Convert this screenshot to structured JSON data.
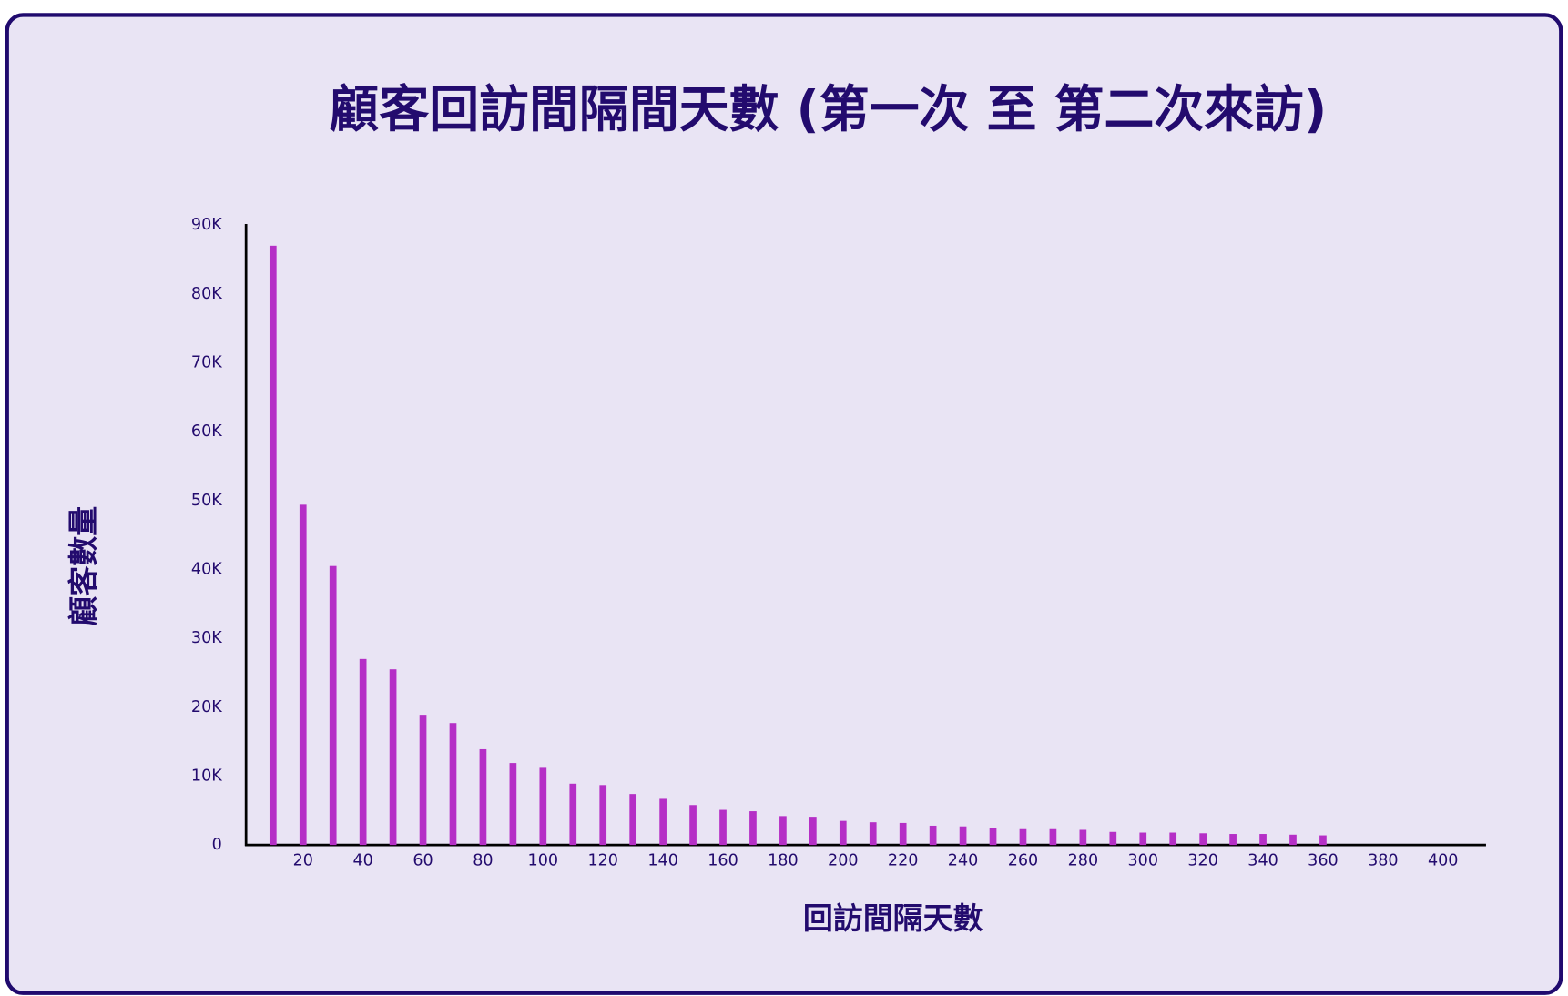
{
  "chart_data": {
    "type": "bar",
    "title": "顧客回訪間隔間天數 (第一次 至 第二次來訪)",
    "x_label": "回訪間隔天數",
    "y_label": "顧客數量",
    "color": "#b52fc6",
    "x": [
      10,
      20,
      30,
      40,
      50,
      60,
      70,
      80,
      90,
      100,
      110,
      120,
      130,
      140,
      150,
      160,
      170,
      180,
      190,
      200,
      210,
      220,
      230,
      240,
      250,
      260,
      270,
      280,
      290,
      300,
      310,
      320,
      330,
      340,
      350,
      360
    ],
    "values": [
      87000,
      49400,
      40500,
      27000,
      25500,
      18900,
      17700,
      13900,
      11900,
      11200,
      8900,
      8700,
      7400,
      6700,
      5800,
      5100,
      4900,
      4200,
      4100,
      3500,
      3300,
      3200,
      2800,
      2700,
      2500,
      2300,
      2300,
      2200,
      1900,
      1800,
      1800,
      1700,
      1600,
      1600,
      1500,
      1400
    ],
    "xlim": [
      0,
      414
    ],
    "xticks": [
      20,
      40,
      60,
      80,
      100,
      120,
      140,
      160,
      180,
      200,
      220,
      240,
      260,
      280,
      300,
      320,
      340,
      360,
      380,
      400
    ],
    "ylim": [
      0,
      90000
    ],
    "yticks": [
      0,
      {
        "value": 10000,
        "label": "10K"
      },
      {
        "value": 20000,
        "label": "20K"
      },
      {
        "value": 30000,
        "label": "30K"
      },
      {
        "value": 40000,
        "label": "40K"
      },
      {
        "value": 50000,
        "label": "50K"
      },
      {
        "value": 60000,
        "label": "60K"
      },
      {
        "value": 70000,
        "label": "70K"
      },
      {
        "value": 80000,
        "label": "80K"
      },
      {
        "value": 90000,
        "label": "90K"
      }
    ],
    "grid": false
  }
}
